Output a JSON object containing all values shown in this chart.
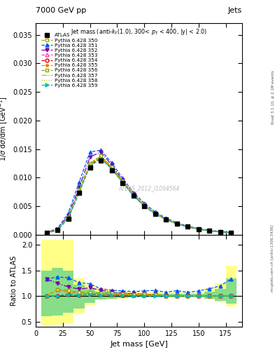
{
  "title_left": "7000 GeV pp",
  "title_right": "Jets",
  "annotation": "Jet mass (anti-k_{T}(1.0), 300< p_{T} < 400, |y| < 2.0)",
  "watermark": "ATLAS_2012_I1094564",
  "xlabel": "Jet mass [GeV]",
  "ylabel_main": "1/σ dσ/dm [GeV⁻¹]",
  "ylabel_ratio": "Ratio to ATLAS",
  "right_label1": "Rivet 3.1.10, ≥ 2.1M events",
  "right_label2": "mcplots.cern.ch [arXiv:1306.3436]",
  "x_data": [
    10,
    20,
    30,
    40,
    50,
    60,
    70,
    80,
    90,
    100,
    110,
    120,
    130,
    140,
    150,
    160,
    170,
    180
  ],
  "atlas_y": [
    0.0003,
    0.0008,
    0.0028,
    0.0073,
    0.0117,
    0.013,
    0.0113,
    0.009,
    0.0068,
    0.005,
    0.0036,
    0.0027,
    0.0019,
    0.0014,
    0.001,
    0.0007,
    0.0005,
    0.0003
  ],
  "series": [
    {
      "label": "Pythia 6.428 350",
      "color": "#aaaa00",
      "linestyle": "--",
      "marker": "s",
      "markerfacecolor": "white",
      "y": [
        0.0003,
        0.0009,
        0.0031,
        0.0078,
        0.0124,
        0.0138,
        0.0119,
        0.0094,
        0.007,
        0.0052,
        0.0037,
        0.0027,
        0.0019,
        0.0014,
        0.001,
        0.0007,
        0.0005,
        0.0003
      ]
    },
    {
      "label": "Pythia 6.428 351",
      "color": "#0055ff",
      "linestyle": "--",
      "marker": "^",
      "markerfacecolor": "#0055ff",
      "y": [
        0.0004,
        0.0011,
        0.0038,
        0.0092,
        0.0145,
        0.0148,
        0.0126,
        0.0099,
        0.0074,
        0.0055,
        0.004,
        0.0029,
        0.0021,
        0.0015,
        0.0011,
        0.0008,
        0.0006,
        0.0004
      ]
    },
    {
      "label": "Pythia 6.428 352",
      "color": "#7700aa",
      "linestyle": "-.",
      "marker": "v",
      "markerfacecolor": "#7700aa",
      "y": [
        0.0004,
        0.001,
        0.0033,
        0.0083,
        0.0136,
        0.0145,
        0.0122,
        0.0095,
        0.0071,
        0.0052,
        0.0037,
        0.0027,
        0.0019,
        0.0014,
        0.001,
        0.0007,
        0.0005,
        0.0003
      ]
    },
    {
      "label": "Pythia 6.428 353",
      "color": "#ff44aa",
      "linestyle": "--",
      "marker": "^",
      "markerfacecolor": "white",
      "y": [
        0.0003,
        0.0009,
        0.003,
        0.0077,
        0.0124,
        0.0136,
        0.0117,
        0.0092,
        0.0069,
        0.0051,
        0.0037,
        0.0027,
        0.0019,
        0.0014,
        0.001,
        0.0007,
        0.0005,
        0.0003
      ]
    },
    {
      "label": "Pythia 6.428 354",
      "color": "#dd0000",
      "linestyle": "--",
      "marker": "o",
      "markerfacecolor": "white",
      "y": [
        0.0003,
        0.0008,
        0.0029,
        0.0074,
        0.0122,
        0.0134,
        0.0116,
        0.0092,
        0.0069,
        0.0051,
        0.0037,
        0.0027,
        0.0019,
        0.0014,
        0.001,
        0.0007,
        0.0005,
        0.0003
      ]
    },
    {
      "label": "Pythia 6.428 355",
      "color": "#ff7700",
      "linestyle": "--",
      "marker": "*",
      "markerfacecolor": "#ff7700",
      "y": [
        0.0003,
        0.0009,
        0.0031,
        0.0077,
        0.0124,
        0.0136,
        0.0118,
        0.0093,
        0.007,
        0.0052,
        0.0037,
        0.0027,
        0.0019,
        0.0014,
        0.001,
        0.0007,
        0.0005,
        0.0003
      ]
    },
    {
      "label": "Pythia 6.428 356",
      "color": "#88aa00",
      "linestyle": "--",
      "marker": "s",
      "markerfacecolor": "white",
      "y": [
        0.0003,
        0.0009,
        0.0031,
        0.0078,
        0.0125,
        0.0138,
        0.0119,
        0.0094,
        0.007,
        0.0052,
        0.0037,
        0.0027,
        0.0019,
        0.0014,
        0.001,
        0.0007,
        0.0005,
        0.0003
      ]
    },
    {
      "label": "Pythia 6.428 357",
      "color": "#ddaa00",
      "linestyle": "-.",
      "marker": "None",
      "markerfacecolor": "#ddaa00",
      "y": [
        0.0003,
        0.0009,
        0.003,
        0.0076,
        0.0123,
        0.0136,
        0.0118,
        0.0093,
        0.007,
        0.0052,
        0.0037,
        0.0027,
        0.0019,
        0.0014,
        0.001,
        0.0007,
        0.0005,
        0.0003
      ]
    },
    {
      "label": "Pythia 6.428 358",
      "color": "#aacc00",
      "linestyle": ":",
      "marker": "None",
      "markerfacecolor": "#aacc00",
      "y": [
        0.0003,
        0.0009,
        0.0031,
        0.0077,
        0.0124,
        0.0137,
        0.0118,
        0.0093,
        0.007,
        0.0052,
        0.0037,
        0.0027,
        0.0019,
        0.0014,
        0.001,
        0.0007,
        0.0005,
        0.0003
      ]
    },
    {
      "label": "Pythia 6.428 359",
      "color": "#00bbaa",
      "linestyle": "--",
      "marker": ">",
      "markerfacecolor": "#00bbaa",
      "y": [
        0.0003,
        0.0008,
        0.0029,
        0.0074,
        0.012,
        0.0133,
        0.0115,
        0.0091,
        0.0068,
        0.005,
        0.0036,
        0.0027,
        0.0019,
        0.0014,
        0.001,
        0.0007,
        0.0005,
        0.0003
      ]
    }
  ],
  "ylim_main": [
    0,
    0.037
  ],
  "ylim_ratio": [
    0.4,
    2.2
  ],
  "xlim": [
    0,
    190
  ],
  "yticks_main": [
    0,
    0.005,
    0.01,
    0.015,
    0.02,
    0.025,
    0.03,
    0.035
  ],
  "yticks_ratio": [
    0.5,
    1.0,
    1.5,
    2.0
  ],
  "xticks": [
    0,
    25,
    50,
    75,
    100,
    125,
    150,
    175
  ],
  "band_yellow_lo": [
    0.42,
    0.44,
    0.46,
    0.65,
    0.82,
    0.92,
    0.93,
    0.95,
    0.96,
    0.97,
    0.97,
    0.97,
    0.97,
    0.97,
    0.97,
    0.93,
    0.88,
    0.8
  ],
  "band_yellow_hi": [
    2.1,
    2.1,
    2.1,
    1.35,
    1.22,
    1.15,
    1.12,
    1.1,
    1.08,
    1.07,
    1.07,
    1.07,
    1.07,
    1.07,
    1.07,
    1.15,
    1.25,
    1.6
  ],
  "band_green_lo": [
    0.6,
    0.62,
    0.67,
    0.76,
    0.87,
    0.94,
    0.95,
    0.96,
    0.97,
    0.98,
    0.98,
    0.98,
    0.98,
    0.98,
    0.98,
    0.95,
    0.91,
    0.85
  ],
  "band_green_hi": [
    1.5,
    1.55,
    1.5,
    1.22,
    1.14,
    1.09,
    1.08,
    1.07,
    1.05,
    1.04,
    1.04,
    1.04,
    1.04,
    1.04,
    1.04,
    1.09,
    1.14,
    1.35
  ]
}
